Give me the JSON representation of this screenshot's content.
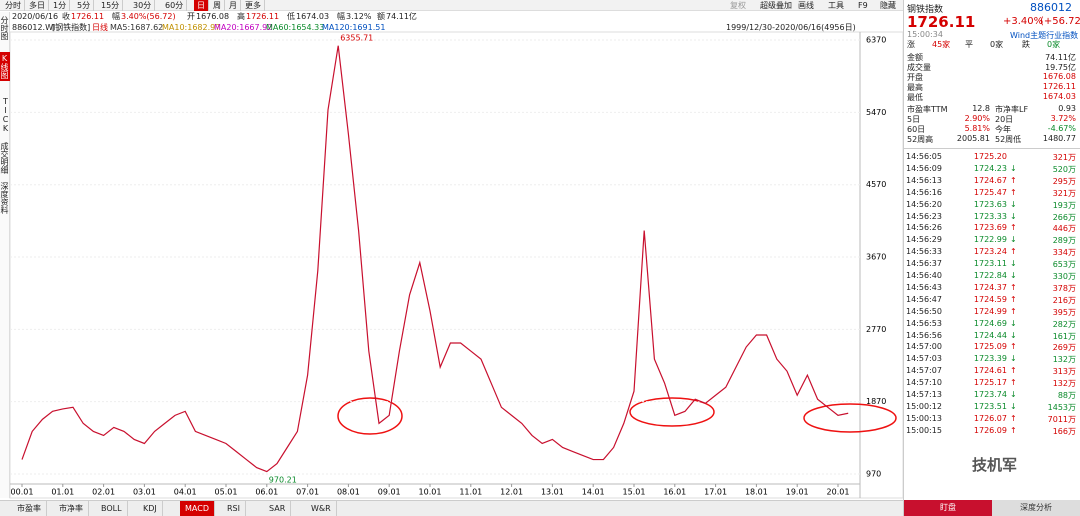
{
  "toolbar": {
    "periods": [
      "分时",
      "多日",
      "1分",
      "5分",
      "15分",
      "30分",
      "60分",
      "日",
      "周",
      "月",
      "更多"
    ],
    "active_period": 7,
    "tools": [
      "复权",
      "超级叠加",
      "画线",
      "工具",
      "F9",
      "隐藏"
    ]
  },
  "side_tabs": [
    "分时图",
    "K线图",
    "TICK",
    "成交明细",
    "深度资料"
  ],
  "active_side_tab": 1,
  "info_bar": {
    "date": "2020/06/16",
    "items": [
      {
        "label": "收",
        "value": "1726.11"
      },
      {
        "label": "幅",
        "value": "3.40%(56.72)"
      },
      {
        "label": "开",
        "value": "1676.08"
      },
      {
        "label": "高",
        "value": "1726.11"
      },
      {
        "label": "低",
        "value": "1674.03"
      },
      {
        "label": "幅",
        "value": "3.12%"
      },
      {
        "label": "额",
        "value": "74.11亿"
      }
    ]
  },
  "ma_bar": {
    "code": "886012.WI",
    "name": "[钢铁指数]",
    "line": "日线",
    "items": [
      "MA5:1687.62",
      "MA10:1682.97",
      "MA20:1667.92",
      "MA60:1654.33",
      "MA120:1691.51"
    ],
    "range": "1999/12/30-2020/06/16(4956日)"
  },
  "chart_data": {
    "type": "line",
    "color": "#c8102e",
    "x": [
      "00.01",
      "00.04",
      "00.07",
      "00.10",
      "01.01",
      "01.04",
      "01.07",
      "01.10",
      "02.01",
      "02.04",
      "02.07",
      "02.10",
      "03.01",
      "03.04",
      "03.07",
      "03.10",
      "04.01",
      "04.04",
      "04.07",
      "04.10",
      "05.01",
      "05.04",
      "05.07",
      "05.10",
      "06.01",
      "06.04",
      "06.07",
      "06.10",
      "07.01",
      "07.04",
      "07.07",
      "07.10",
      "08.01",
      "08.04",
      "08.07",
      "08.10",
      "09.01",
      "09.04",
      "09.07",
      "09.10",
      "10.01",
      "10.04",
      "10.07",
      "10.10",
      "11.01",
      "11.04",
      "11.07",
      "11.10",
      "12.01",
      "12.04",
      "12.07",
      "12.10",
      "13.01",
      "13.04",
      "13.07",
      "13.10",
      "14.01",
      "14.04",
      "14.07",
      "14.10",
      "15.01",
      "15.04",
      "15.07",
      "15.10",
      "16.01",
      "16.04",
      "16.07",
      "16.10",
      "17.01",
      "17.04",
      "17.07",
      "17.10",
      "18.01",
      "18.04",
      "18.07",
      "18.10",
      "19.01",
      "19.04",
      "19.07",
      "19.10",
      "20.01",
      "20.04"
    ],
    "values": [
      1150,
      1500,
      1650,
      1750,
      1780,
      1800,
      1600,
      1500,
      1450,
      1550,
      1500,
      1400,
      1350,
      1500,
      1600,
      1700,
      1750,
      1500,
      1450,
      1400,
      1350,
      1250,
      1150,
      1050,
      1000,
      1100,
      1300,
      1500,
      2200,
      3500,
      5500,
      6300,
      5200,
      4000,
      2500,
      1600,
      1700,
      2500,
      3200,
      3600,
      3000,
      2300,
      2600,
      2600,
      2500,
      2400,
      2100,
      1800,
      1700,
      1600,
      1450,
      1350,
      1400,
      1300,
      1250,
      1200,
      1150,
      1150,
      1300,
      1600,
      2000,
      4000,
      2400,
      2100,
      1700,
      1750,
      1900,
      1850,
      1950,
      2050,
      2300,
      2550,
      2700,
      2700,
      2400,
      2250,
      1950,
      2200,
      1900,
      1800,
      1700,
      1726.11
    ],
    "xticks": [
      "00.01",
      "01.01",
      "02.01",
      "03.01",
      "04.01",
      "05.01",
      "06.01",
      "07.01",
      "08.01",
      "09.01",
      "10.01",
      "11.01",
      "12.01",
      "13.01",
      "14.01",
      "15.01",
      "16.01",
      "17.01",
      "18.01",
      "19.01",
      "20.01"
    ],
    "ylim": [
      684,
      6470
    ],
    "yticks": [
      970,
      1870,
      2770,
      3670,
      4570,
      5470,
      6370
    ],
    "annotations": [
      {
        "text": "6355.71",
        "at": "07.10",
        "value": 6355.71
      },
      {
        "text": "970.21",
        "at": "06.01",
        "value": 970.21
      }
    ]
  },
  "quote": {
    "name": "钢铁指数",
    "code": "886012",
    "price": "1726.11",
    "change": "+3.40%",
    "change_abs": "(+56.72)",
    "time": "15:00:34",
    "sector": "Wind主题行业指数",
    "breadth": [
      {
        "label": "涨",
        "value": "45家"
      },
      {
        "label": "平",
        "value": "0家"
      },
      {
        "label": "跌",
        "value": "0家"
      }
    ],
    "stats": [
      [
        "金额",
        "74.11亿"
      ],
      [
        "成交量",
        "19.75亿"
      ],
      [
        "开盘",
        "1676.08"
      ],
      [
        "最高",
        "1726.11"
      ],
      [
        "最低",
        "1674.03"
      ]
    ],
    "valuation": [
      [
        "市盈率TTM",
        "12.8",
        "市净率LF",
        "0.93"
      ],
      [
        "5日",
        "2.90%",
        "20日",
        "3.72%"
      ],
      [
        "60日",
        "5.81%",
        "今年",
        "-4.67%"
      ],
      [
        "52周高",
        "2005.81",
        "52周低",
        "1480.77"
      ]
    ]
  },
  "trades": [
    [
      "14:56:05",
      "1725.20",
      "321万",
      null
    ],
    [
      "14:56:09",
      "1724.23",
      "520万",
      false
    ],
    [
      "14:56:13",
      "1724.67",
      "295万",
      true
    ],
    [
      "14:56:16",
      "1725.47",
      "321万",
      true
    ],
    [
      "14:56:20",
      "1723.63",
      "193万",
      false
    ],
    [
      "14:56:23",
      "1723.33",
      "266万",
      false
    ],
    [
      "14:56:26",
      "1723.69",
      "446万",
      true
    ],
    [
      "14:56:29",
      "1722.99",
      "289万",
      false
    ],
    [
      "14:56:33",
      "1723.24",
      "334万",
      true
    ],
    [
      "14:56:37",
      "1723.11",
      "653万",
      false
    ],
    [
      "14:56:40",
      "1722.84",
      "330万",
      false
    ],
    [
      "14:56:43",
      "1724.37",
      "378万",
      true
    ],
    [
      "14:56:47",
      "1724.59",
      "216万",
      true
    ],
    [
      "14:56:50",
      "1724.99",
      "395万",
      true
    ],
    [
      "14:56:53",
      "1724.69",
      "282万",
      false
    ],
    [
      "14:56:56",
      "1724.44",
      "161万",
      false
    ],
    [
      "14:57:00",
      "1725.09",
      "269万",
      true
    ],
    [
      "14:57:03",
      "1723.39",
      "132万",
      false
    ],
    [
      "14:57:07",
      "1724.61",
      "313万",
      true
    ],
    [
      "14:57:10",
      "1725.17",
      "132万",
      true
    ],
    [
      "14:57:13",
      "1723.74",
      "88万",
      false
    ],
    [
      "15:00:12",
      "1723.51",
      "1453万",
      false
    ],
    [
      "15:00:13",
      "1726.07",
      "7011万",
      true
    ],
    [
      "15:00:15",
      "1726.09",
      "166万",
      true
    ]
  ],
  "bottom_tabs": [
    "市盈率",
    "市净率",
    "BOLL",
    "KDJ",
    "MACD",
    "RSI",
    "SAR",
    "W&R"
  ],
  "active_bottom_tab": 4,
  "bottom_buttons": [
    "盯盘",
    "深度分析"
  ],
  "watermark": "技机军"
}
